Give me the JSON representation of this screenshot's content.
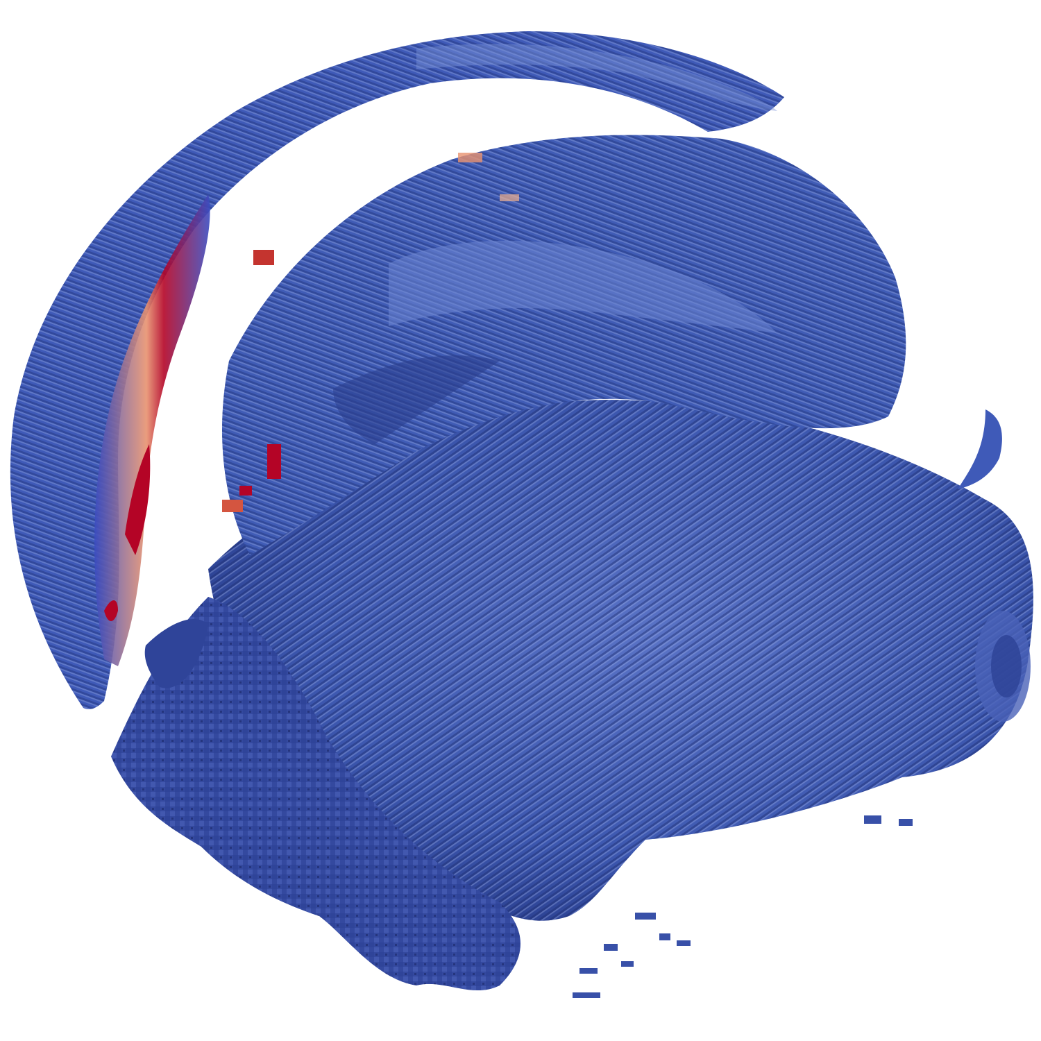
{
  "render": {
    "background": "#ffffff",
    "colormap": {
      "name": "cool-to-warm",
      "stops": [
        "#3b4cc0",
        "#6788ee",
        "#9abbff",
        "#c9d7f0",
        "#edd1c2",
        "#f7a889",
        "#e26952",
        "#b40426"
      ]
    },
    "base_color": "#3d58b0",
    "shadow_color": "#22357d",
    "highlight_color": "#8ea6e0"
  }
}
